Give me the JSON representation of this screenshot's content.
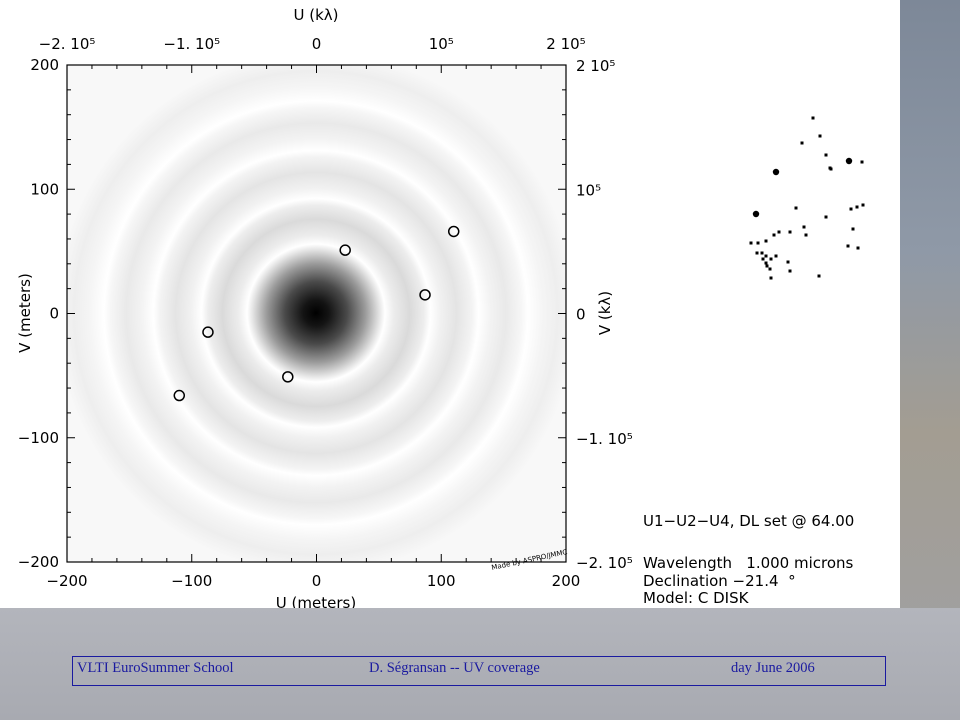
{
  "chart_data": {
    "type": "scatter",
    "title": "",
    "xlabel": "U (meters)",
    "ylabel": "V (meters)",
    "top_axis_label": "U (kλ)",
    "right_axis_label": "V (kλ)",
    "xlim": [
      -200,
      200
    ],
    "ylim": [
      -200,
      200
    ],
    "x_ticks": [
      "−200",
      "−100",
      "0",
      "100",
      "200"
    ],
    "y_ticks": [
      "−200",
      "−100",
      "0",
      "100",
      "200"
    ],
    "top_ticks": [
      "−2. 10⁵",
      "−1. 10⁵",
      "0",
      "10⁵",
      "2 10⁵"
    ],
    "right_ticks": [
      "2 10⁵",
      "10⁵",
      "0",
      "−1. 10⁵",
      "−2. 10⁵"
    ],
    "background": "visibility model image: uniform disk (dark central peak with concentric rings)",
    "series": [
      {
        "points": [
          {
            "x": 23,
            "y": 51
          },
          {
            "x": 110,
            "y": 66
          },
          {
            "x": 87,
            "y": 15
          },
          {
            "x": -23,
            "y": -51
          },
          {
            "x": -110,
            "y": -66
          },
          {
            "x": -87,
            "y": -15
          }
        ]
      }
    ],
    "credit": "Made by ASPRO/JMMC",
    "grid": false,
    "legend": "none"
  },
  "info": {
    "baselines": "U1−U2−U4, DL set @ 64.00",
    "wavelength": "Wavelength   1.000 microns",
    "declination": "Declination −21.4  °",
    "model": "Model: C DISK"
  },
  "footer": {
    "school": "VLTI EuroSummer School",
    "author": "D. Ségransan -- UV coverage",
    "date": "day June 2006"
  },
  "colors": {
    "footer_text": "#1a1aa0",
    "footer_border": "#1a1aa0",
    "plot_background": "#ffffff",
    "page_background": "#a9abb2"
  }
}
